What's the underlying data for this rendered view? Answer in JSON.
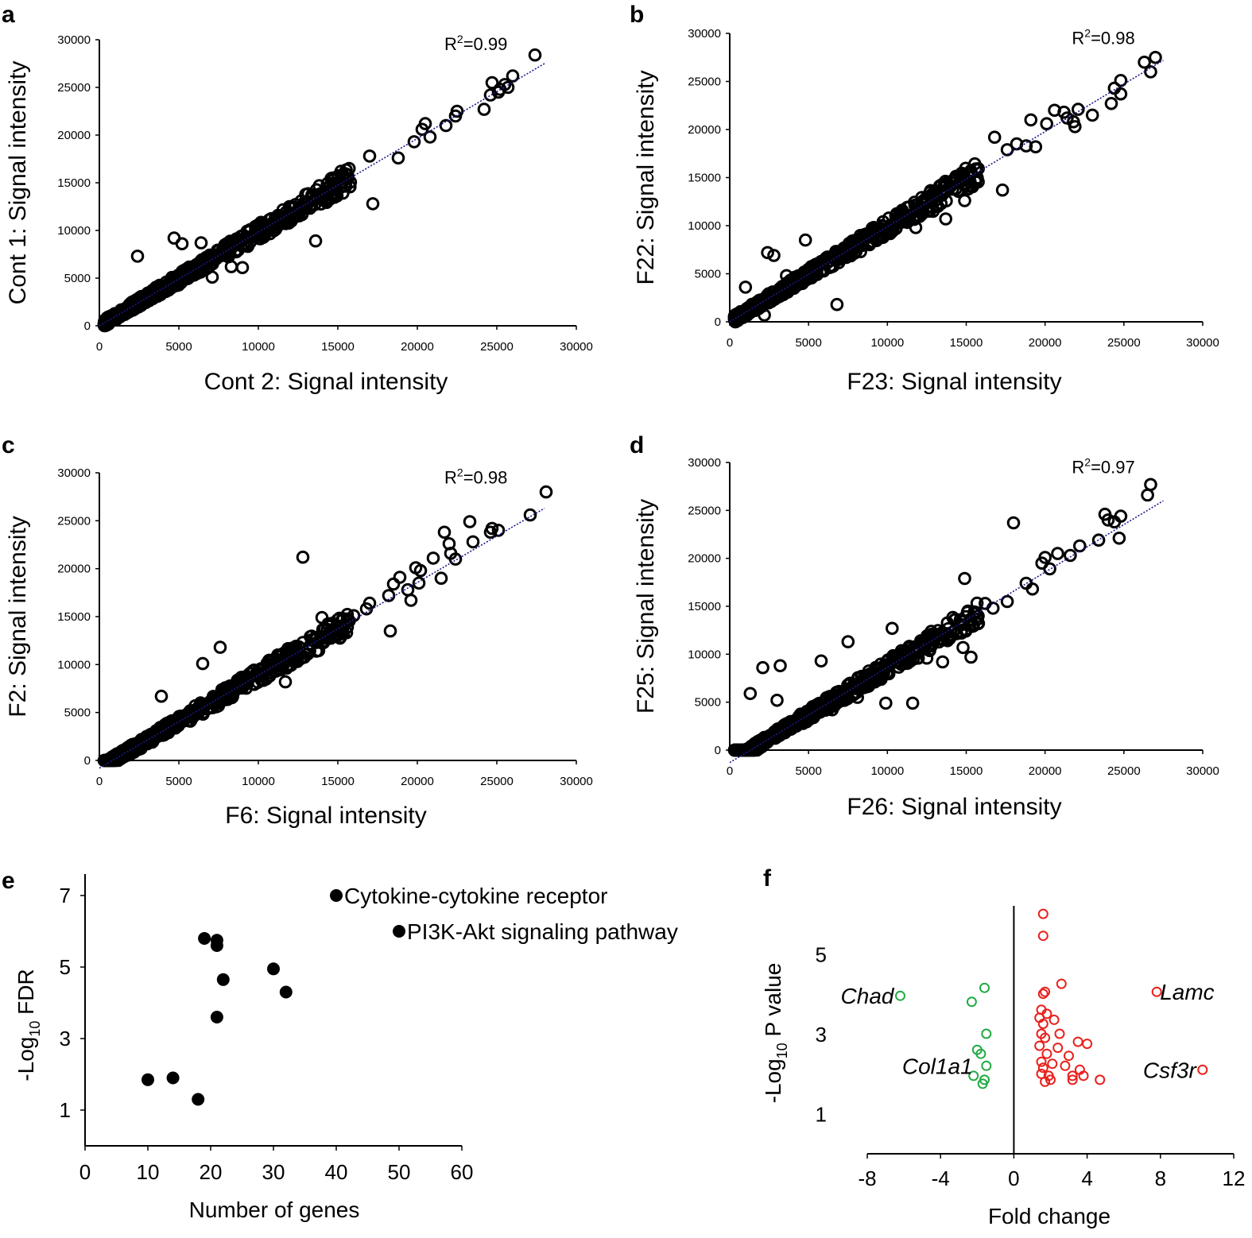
{
  "figure": {
    "panels": [
      "a",
      "b",
      "c",
      "d",
      "e",
      "f"
    ]
  },
  "chart_data": [
    {
      "id": "a",
      "type": "scatter",
      "panel_label": "a",
      "xlabel": "Cont 2: Signal intensity",
      "ylabel": "Cont 1: Signal intensity",
      "xlim": [
        0,
        30000
      ],
      "ylim": [
        0,
        30000
      ],
      "xticks": [
        "0",
        "5000",
        "10000",
        "15000",
        "20000",
        "25000",
        "30000"
      ],
      "yticks": [
        "0",
        "5000",
        "10000",
        "15000",
        "20000",
        "25000",
        "30000"
      ],
      "annotation_prefix": "R",
      "annotation_sup": "2",
      "annotation_value": "=0.99",
      "trendline": [
        [
          0,
          0
        ],
        [
          28000,
          27500
        ]
      ],
      "marker_color": "#000000",
      "trend_color": "#1a1a8c",
      "outliers": [
        [
          2400,
          7300
        ],
        [
          4700,
          9200
        ],
        [
          5200,
          8600
        ],
        [
          6400,
          8700
        ],
        [
          13600,
          8900
        ],
        [
          15200,
          16200
        ],
        [
          17000,
          17800
        ],
        [
          17200,
          12800
        ],
        [
          18800,
          17600
        ],
        [
          19800,
          19300
        ],
        [
          20300,
          20600
        ],
        [
          20500,
          21200
        ],
        [
          20800,
          19800
        ],
        [
          21800,
          21000
        ],
        [
          22400,
          22000
        ],
        [
          22500,
          22500
        ],
        [
          24200,
          22700
        ],
        [
          24600,
          24200
        ],
        [
          24700,
          25500
        ],
        [
          25200,
          24800
        ],
        [
          25500,
          25300
        ],
        [
          25100,
          24500
        ],
        [
          25700,
          25000
        ],
        [
          26000,
          26200
        ],
        [
          27400,
          28400
        ],
        [
          8300,
          6200
        ],
        [
          9000,
          6100
        ],
        [
          7100,
          5100
        ]
      ]
    },
    {
      "id": "b",
      "type": "scatter",
      "panel_label": "b",
      "xlabel": "F23: Signal intensity",
      "ylabel": "F22: Signal intensity",
      "xlim": [
        0,
        30000
      ],
      "ylim": [
        0,
        30000
      ],
      "xticks": [
        "0",
        "5000",
        "10000",
        "15000",
        "20000",
        "25000",
        "30000"
      ],
      "yticks": [
        "0",
        "5000",
        "10000",
        "15000",
        "20000",
        "25000",
        "30000"
      ],
      "annotation_prefix": "R",
      "annotation_sup": "2",
      "annotation_value": "=0.98",
      "trendline": [
        [
          0,
          0
        ],
        [
          27500,
          27200
        ]
      ],
      "marker_color": "#000000",
      "trend_color": "#1a1a8c",
      "outliers": [
        [
          2400,
          7200
        ],
        [
          2800,
          6900
        ],
        [
          4800,
          8500
        ],
        [
          6800,
          1800
        ],
        [
          8300,
          7300
        ],
        [
          11800,
          9800
        ],
        [
          12200,
          12300
        ],
        [
          12900,
          11500
        ],
        [
          13700,
          10700
        ],
        [
          14900,
          12600
        ],
        [
          15700,
          15800
        ],
        [
          16800,
          19200
        ],
        [
          17300,
          13700
        ],
        [
          17600,
          17900
        ],
        [
          18200,
          18500
        ],
        [
          18800,
          18300
        ],
        [
          19100,
          21000
        ],
        [
          19400,
          18200
        ],
        [
          20100,
          20600
        ],
        [
          20600,
          22000
        ],
        [
          21200,
          21800
        ],
        [
          21400,
          21200
        ],
        [
          21800,
          20800
        ],
        [
          21900,
          20300
        ],
        [
          22100,
          22100
        ],
        [
          23000,
          21500
        ],
        [
          24200,
          22700
        ],
        [
          24800,
          25100
        ],
        [
          24800,
          23700
        ],
        [
          24400,
          24300
        ],
        [
          26300,
          27000
        ],
        [
          26700,
          26000
        ],
        [
          27000,
          27500
        ],
        [
          1000,
          3600
        ],
        [
          2200,
          700
        ],
        [
          3600,
          4800
        ]
      ]
    },
    {
      "id": "c",
      "type": "scatter",
      "panel_label": "c",
      "xlabel": "F6: Signal intensity",
      "ylabel": "F2: Signal intensity",
      "xlim": [
        0,
        30000
      ],
      "ylim": [
        0,
        30000
      ],
      "xticks": [
        "0",
        "5000",
        "10000",
        "15000",
        "20000",
        "25000",
        "30000"
      ],
      "yticks": [
        "0",
        "5000",
        "10000",
        "15000",
        "20000",
        "25000",
        "30000"
      ],
      "annotation_prefix": "R",
      "annotation_sup": "2",
      "annotation_value": "=0.98",
      "trendline": [
        [
          0,
          -800
        ],
        [
          28000,
          26300
        ]
      ],
      "marker_color": "#000000",
      "trend_color": "#1a1a8c",
      "outliers": [
        [
          3900,
          6700
        ],
        [
          6500,
          10100
        ],
        [
          7600,
          11800
        ],
        [
          10500,
          8500
        ],
        [
          12800,
          21200
        ],
        [
          14000,
          14900
        ],
        [
          15300,
          13800
        ],
        [
          16000,
          15100
        ],
        [
          16800,
          15800
        ],
        [
          17000,
          16400
        ],
        [
          18200,
          17200
        ],
        [
          18300,
          13500
        ],
        [
          18500,
          18400
        ],
        [
          18900,
          19100
        ],
        [
          19400,
          17800
        ],
        [
          19600,
          16700
        ],
        [
          19900,
          20100
        ],
        [
          20100,
          18500
        ],
        [
          20200,
          19800
        ],
        [
          21000,
          21100
        ],
        [
          21500,
          19000
        ],
        [
          21700,
          23800
        ],
        [
          22000,
          22600
        ],
        [
          22100,
          21600
        ],
        [
          22400,
          21000
        ],
        [
          23300,
          24900
        ],
        [
          23500,
          22800
        ],
        [
          24600,
          23800
        ],
        [
          24700,
          24200
        ],
        [
          25100,
          24000
        ],
        [
          27100,
          25600
        ],
        [
          28100,
          28000
        ],
        [
          11700,
          8200
        ],
        [
          9100,
          8500
        ]
      ]
    },
    {
      "id": "d",
      "type": "scatter",
      "panel_label": "d",
      "xlabel": "F26: Signal intensity",
      "ylabel": "F25: Signal intensity",
      "xlim": [
        0,
        30000
      ],
      "ylim": [
        0,
        30000
      ],
      "xticks": [
        "0",
        "5000",
        "10000",
        "15000",
        "20000",
        "25000",
        "30000"
      ],
      "yticks": [
        "0",
        "5000",
        "10000",
        "15000",
        "20000",
        "25000",
        "30000"
      ],
      "annotation_prefix": "R",
      "annotation_sup": "2",
      "annotation_value": "=0.97",
      "trendline": [
        [
          0,
          -1300
        ],
        [
          27500,
          26000
        ]
      ],
      "marker_color": "#000000",
      "trend_color": "#1a1a8c",
      "outliers": [
        [
          2100,
          8600
        ],
        [
          3200,
          8800
        ],
        [
          1300,
          5900
        ],
        [
          3000,
          5200
        ],
        [
          5800,
          9300
        ],
        [
          7500,
          11300
        ],
        [
          8100,
          5500
        ],
        [
          9200,
          7100
        ],
        [
          9900,
          4900
        ],
        [
          10300,
          12700
        ],
        [
          12500,
          9600
        ],
        [
          13500,
          9200
        ],
        [
          14000,
          11800
        ],
        [
          14300,
          13600
        ],
        [
          14700,
          12200
        ],
        [
          14800,
          10700
        ],
        [
          14900,
          17900
        ],
        [
          15300,
          9700
        ],
        [
          16200,
          15300
        ],
        [
          16700,
          14800
        ],
        [
          17600,
          15500
        ],
        [
          18000,
          23700
        ],
        [
          18800,
          17400
        ],
        [
          19200,
          16800
        ],
        [
          19800,
          19500
        ],
        [
          20000,
          20100
        ],
        [
          20300,
          18900
        ],
        [
          20800,
          20500
        ],
        [
          21600,
          20300
        ],
        [
          22200,
          21300
        ],
        [
          23400,
          21900
        ],
        [
          23800,
          24600
        ],
        [
          24000,
          24000
        ],
        [
          24400,
          23800
        ],
        [
          24700,
          22100
        ],
        [
          24800,
          24400
        ],
        [
          26500,
          26600
        ],
        [
          26700,
          27700
        ],
        [
          6500,
          4200
        ],
        [
          11600,
          4900
        ]
      ]
    },
    {
      "id": "e",
      "type": "scatter",
      "panel_label": "e",
      "xlabel": "Number of genes",
      "ylabel_main": "-Log",
      "ylabel_sub": "10",
      "ylabel_tail": " FDR",
      "xlim": [
        0,
        60
      ],
      "ylim": [
        0,
        7.6
      ],
      "xticks": [
        "0",
        "10",
        "20",
        "30",
        "40",
        "50",
        "60"
      ],
      "yticks": [
        "1",
        "3",
        "5",
        "7"
      ],
      "marker_color": "#000000",
      "points": [
        [
          10,
          1.85
        ],
        [
          14,
          1.9
        ],
        [
          18,
          1.3
        ],
        [
          19,
          5.8
        ],
        [
          21,
          5.75
        ],
        [
          21,
          5.6
        ],
        [
          22,
          4.65
        ],
        [
          21,
          3.6
        ],
        [
          30,
          4.95
        ],
        [
          32,
          4.3
        ],
        [
          40,
          7.0
        ],
        [
          50,
          6.0
        ]
      ],
      "labels": [
        {
          "text": "Cytokine-cytokine receptor",
          "x": 40,
          "y": 7.0
        },
        {
          "text": "PI3K-Akt signaling pathway",
          "x": 50,
          "y": 6.0
        }
      ]
    },
    {
      "id": "f",
      "type": "scatter",
      "panel_label": "f",
      "xlabel": "Fold change",
      "ylabel_main": "-Log",
      "ylabel_sub": "10",
      "ylabel_tail": " P value",
      "xlim": [
        -8.5,
        12
      ],
      "ylim": [
        0,
        6.2
      ],
      "xticks": [
        "-8",
        "-4",
        "0",
        "4",
        "8",
        "12"
      ],
      "yticks": [
        "1",
        "3",
        "5"
      ],
      "down_color": "#22aa44",
      "up_color": "#e8201c",
      "down_points": [
        [
          -6.2,
          3.95
        ],
        [
          -2.3,
          3.8
        ],
        [
          -1.6,
          4.15
        ],
        [
          -1.5,
          3.0
        ],
        [
          -2.0,
          2.6
        ],
        [
          -1.8,
          2.5
        ],
        [
          -1.5,
          2.2
        ],
        [
          -2.2,
          1.95
        ],
        [
          -1.6,
          1.85
        ],
        [
          -1.7,
          1.75
        ]
      ],
      "up_points": [
        [
          1.6,
          6.0
        ],
        [
          1.6,
          5.45
        ],
        [
          2.6,
          4.25
        ],
        [
          1.7,
          4.05
        ],
        [
          1.6,
          4.0
        ],
        [
          1.5,
          3.6
        ],
        [
          1.8,
          3.5
        ],
        [
          1.4,
          3.4
        ],
        [
          2.2,
          3.35
        ],
        [
          1.6,
          3.25
        ],
        [
          1.5,
          3.0
        ],
        [
          2.5,
          3.0
        ],
        [
          1.7,
          2.9
        ],
        [
          3.5,
          2.8
        ],
        [
          1.4,
          2.7
        ],
        [
          2.4,
          2.65
        ],
        [
          4.0,
          2.75
        ],
        [
          1.8,
          2.5
        ],
        [
          3.0,
          2.45
        ],
        [
          1.5,
          2.3
        ],
        [
          2.1,
          2.25
        ],
        [
          1.6,
          2.15
        ],
        [
          2.8,
          2.2
        ],
        [
          3.6,
          2.1
        ],
        [
          1.5,
          2.0
        ],
        [
          1.9,
          1.95
        ],
        [
          3.2,
          1.95
        ],
        [
          3.8,
          1.95
        ],
        [
          2.0,
          1.85
        ],
        [
          3.2,
          1.85
        ],
        [
          1.7,
          1.8
        ],
        [
          4.7,
          1.85
        ],
        [
          7.8,
          4.05
        ],
        [
          10.3,
          2.1
        ]
      ],
      "labels": [
        {
          "text": "Chad",
          "side": "left",
          "x": -6.2,
          "y": 3.95,
          "color": "#000000"
        },
        {
          "text": "Col1a1",
          "side": "left",
          "x": -1.9,
          "y": 2.2,
          "color": "#000000"
        },
        {
          "text": "Lamc",
          "side": "right",
          "x": 7.8,
          "y": 4.05,
          "color": "#000000"
        },
        {
          "text": "Csf3r",
          "side": "left",
          "x": 10.3,
          "y": 2.1,
          "color": "#000000"
        }
      ]
    }
  ]
}
